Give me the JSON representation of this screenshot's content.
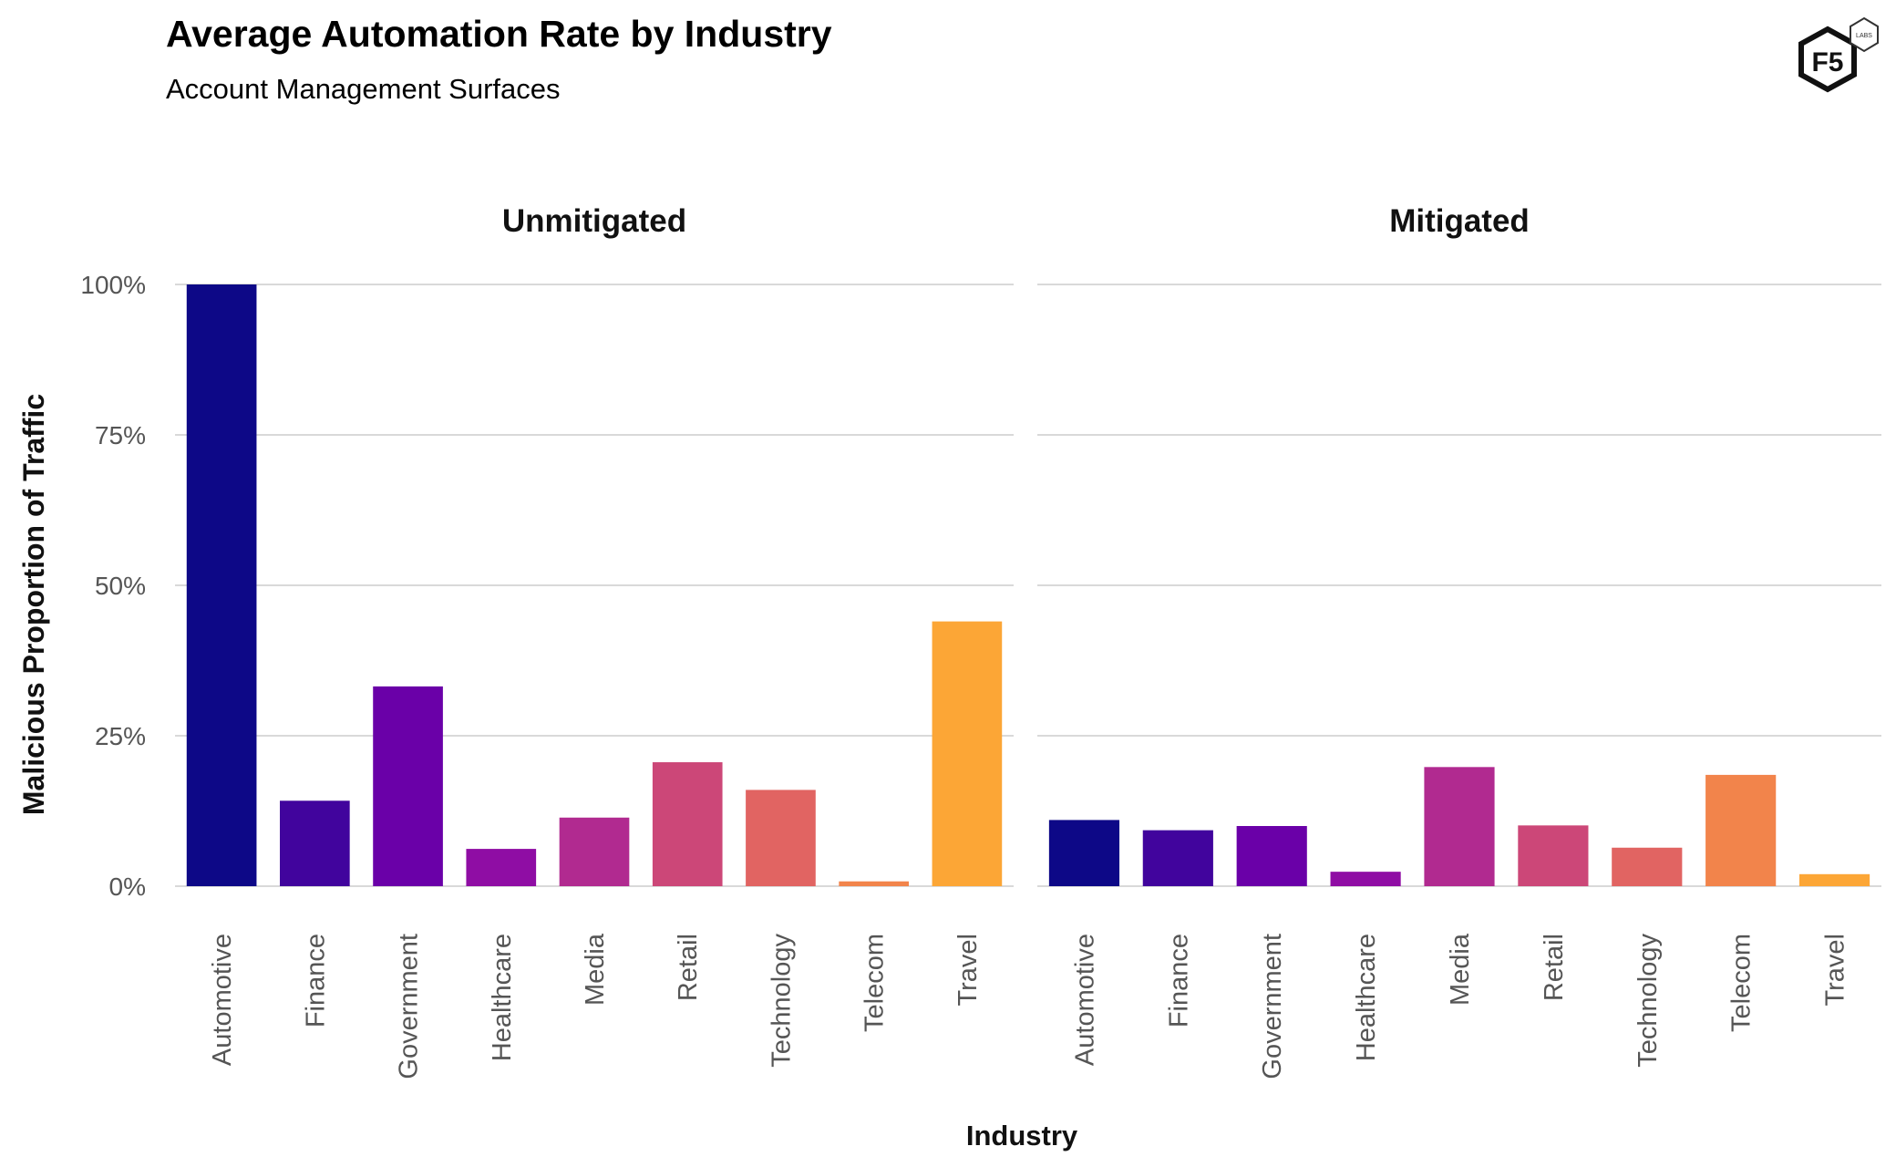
{
  "header": {
    "title": "Average Automation Rate by Industry",
    "subtitle": "Account Management Surfaces"
  },
  "logo": {
    "main_text": "F5",
    "badge_text": "LABS"
  },
  "colors": {
    "grid": "#d9d9d9",
    "tick_text": "#555555",
    "palette": [
      "#0d0887",
      "#41049d",
      "#6a00a8",
      "#8f0da4",
      "#b12a90",
      "#cc4778",
      "#e16462",
      "#f2844b",
      "#fca636"
    ]
  },
  "chart_data": {
    "type": "bar",
    "xlabel": "Industry",
    "ylabel": "Malicious Proportion of Traffic",
    "ylim": [
      0,
      100
    ],
    "yticks": [
      0,
      25,
      50,
      75,
      100
    ],
    "ytick_labels": [
      "0%",
      "25%",
      "50%",
      "75%",
      "100%"
    ],
    "grid": true,
    "categories": [
      "Automotive",
      "Finance",
      "Government",
      "Healthcare",
      "Media",
      "Retail",
      "Technology",
      "Telecom",
      "Travel"
    ],
    "panels": [
      {
        "name": "Unmitigated",
        "values": [
          100,
          14.2,
          33.2,
          6.2,
          11.4,
          20.6,
          16.0,
          0.8,
          44.0
        ]
      },
      {
        "name": "Mitigated",
        "values": [
          11.0,
          9.3,
          10.0,
          2.4,
          19.8,
          10.1,
          6.4,
          18.5,
          2.0
        ]
      }
    ]
  }
}
